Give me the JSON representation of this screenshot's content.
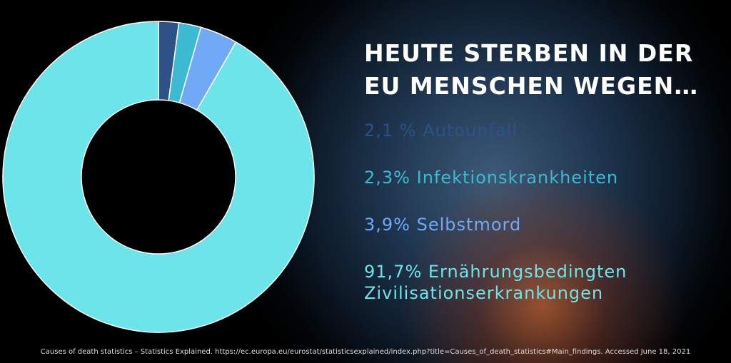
{
  "chart_data": {
    "type": "donut",
    "title": "HEUTE STERBEN IN DER EU MENSCHEN WEGEN…",
    "categories": [
      "Autounfall",
      "Infektionskrankheiten",
      "Selbstmord",
      "Ernährungsbedingten Zivilisationserkrankungen"
    ],
    "values": [
      2.1,
      2.3,
      3.9,
      91.7
    ],
    "value_labels": [
      "2,1 %",
      "2,3%",
      "3,9%",
      "91,7%"
    ],
    "colors": [
      "#2c5288",
      "#3cbad2",
      "#70a9f6",
      "#6ce4e9"
    ],
    "source": "Causes of death statistics – Statistics Explained. https://ec.europa.eu/eurostat/statisticsexplained/index.php?title=Causes_of_death_statistics#Main_findings. Accessed June 18, 2021"
  }
}
